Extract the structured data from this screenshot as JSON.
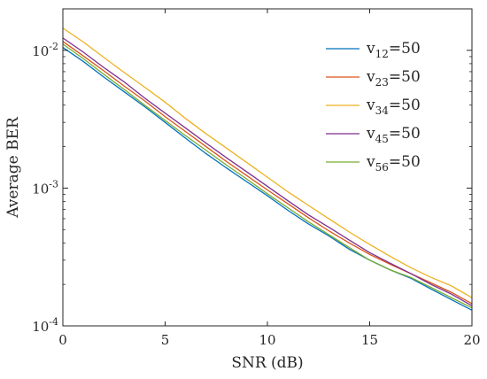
{
  "chart_data": {
    "type": "line",
    "xlabel": "SNR (dB)",
    "ylabel": "Average BER",
    "xlim": [
      0,
      20
    ],
    "ylim": [
      0.0001,
      0.02
    ],
    "y_scale": "log",
    "grid": false,
    "legend_placement": "top-right",
    "x_ticks": [
      0,
      5,
      10,
      15,
      20
    ],
    "x_tick_labels": [
      "0",
      "5",
      "10",
      "15",
      "20"
    ],
    "y_ticks": [
      0.01,
      0.001,
      0.0001
    ],
    "y_tick_labels": [
      {
        "base": "10",
        "exp": "-2"
      },
      {
        "base": "10",
        "exp": "-3"
      },
      {
        "base": "10",
        "exp": "-4"
      }
    ],
    "x": [
      0,
      1,
      2,
      3,
      4,
      5,
      6,
      7,
      8,
      9,
      10,
      11,
      12,
      13,
      14,
      15,
      16,
      17,
      18,
      19,
      20
    ],
    "series": [
      {
        "name": "v12=50",
        "label_main": "v",
        "label_sub": "12",
        "label_rest": "=50",
        "color": "#0072BD",
        "values": [
          0.0105,
          0.0083,
          0.0064,
          0.005,
          0.0039,
          0.003,
          0.0023,
          0.00178,
          0.0014,
          0.00111,
          0.00088,
          0.00069,
          0.00055,
          0.00045,
          0.00036,
          0.0003,
          0.000255,
          0.000222,
          0.000185,
          0.000155,
          0.00013
        ]
      },
      {
        "name": "v23=50",
        "label_main": "v",
        "label_sub": "23",
        "label_rest": "=50",
        "color": "#D95319",
        "values": [
          0.0116,
          0.0091,
          0.0071,
          0.0055,
          0.0043,
          0.0033,
          0.00257,
          0.002,
          0.00156,
          0.00123,
          0.00097,
          0.00077,
          0.00061,
          0.00049,
          0.0004,
          0.00033,
          0.00028,
          0.00024,
          0.000205,
          0.000175,
          0.000145
        ]
      },
      {
        "name": "v34=50",
        "label_main": "v",
        "label_sub": "34",
        "label_rest": "=50",
        "color": "#EDB120",
        "values": [
          0.0145,
          0.0115,
          0.0089,
          0.0069,
          0.0054,
          0.0042,
          0.0032,
          0.00248,
          0.00195,
          0.00153,
          0.0012,
          0.00094,
          0.00075,
          0.0006,
          0.00048,
          0.00039,
          0.00032,
          0.000265,
          0.000225,
          0.000195,
          0.00016
        ]
      },
      {
        "name": "v45=50",
        "label_main": "v",
        "label_sub": "45",
        "label_rest": "=50",
        "color": "#7E2F8E",
        "values": [
          0.0123,
          0.0097,
          0.0075,
          0.0059,
          0.0045,
          0.0035,
          0.00273,
          0.00212,
          0.00166,
          0.00131,
          0.00103,
          0.00081,
          0.00064,
          0.00052,
          0.00042,
          0.00034,
          0.000285,
          0.00024,
          0.0002,
          0.00017,
          0.00014
        ]
      },
      {
        "name": "v56=50",
        "label_main": "v",
        "label_sub": "56",
        "label_rest": "=50",
        "color": "#77AC30",
        "values": [
          0.0111,
          0.0087,
          0.0067,
          0.0052,
          0.004,
          0.0031,
          0.0024,
          0.00188,
          0.00147,
          0.00116,
          0.00091,
          0.00072,
          0.00057,
          0.00046,
          0.00037,
          0.0003,
          0.000255,
          0.000225,
          0.00019,
          0.00016,
          0.000135
        ]
      }
    ]
  }
}
